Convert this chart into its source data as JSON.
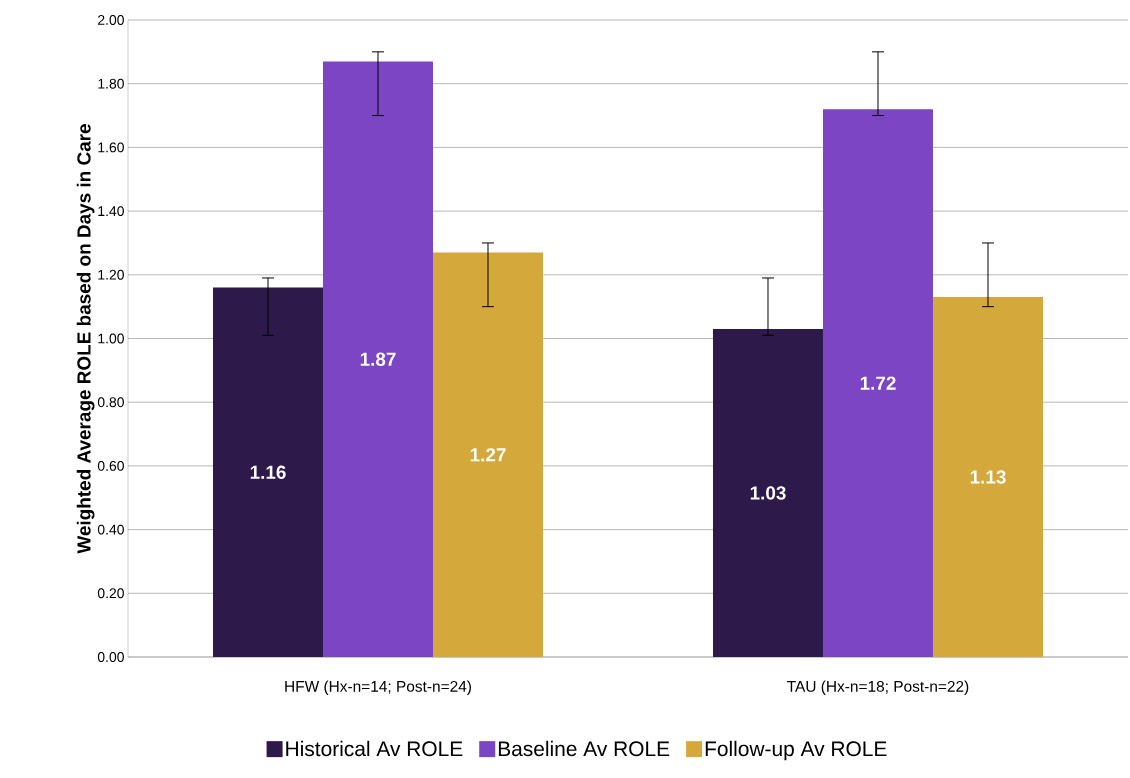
{
  "chart_data": {
    "type": "bar",
    "ylabel": "Weighted Average ROLE based on Days in Care",
    "categories": [
      "HFW (Hx-n=14; Post-n=24)",
      "TAU (Hx-n=18; Post-n=22)"
    ],
    "series": [
      {
        "name": "Historical Av ROLE",
        "color": "#2e1a4a",
        "values": [
          1.16,
          1.03
        ],
        "errors": [
          [
            1.01,
            1.19
          ],
          [
            1.01,
            1.19
          ]
        ]
      },
      {
        "name": "Baseline Av ROLE",
        "color": "#7b45c4",
        "values": [
          1.87,
          1.72
        ],
        "errors": [
          [
            1.7,
            1.9
          ],
          [
            1.7,
            1.9
          ]
        ]
      },
      {
        "name": "Follow-up Av ROLE",
        "color": "#d4a83a",
        "values": [
          1.27,
          1.13
        ],
        "errors": [
          [
            1.1,
            1.3
          ],
          [
            1.1,
            1.3
          ]
        ]
      }
    ],
    "ylim": [
      0,
      2
    ],
    "yticks": [
      {
        "value": 0,
        "label": "0.00"
      },
      {
        "value": 0.2,
        "label": "0.20"
      },
      {
        "value": 0.4,
        "label": "0.40"
      },
      {
        "value": 0.6,
        "label": "0.60"
      },
      {
        "value": 0.8,
        "label": "0.80"
      },
      {
        "value": 1.0,
        "label": "1.00"
      },
      {
        "value": 1.2,
        "label": "1.20"
      },
      {
        "value": 1.4,
        "label": "1.40"
      },
      {
        "value": 1.6,
        "label": "1.60"
      },
      {
        "value": 1.8,
        "label": "1.80"
      },
      {
        "value": 2.0,
        "label": "2.00"
      }
    ],
    "grid": "y",
    "legend": "bottom",
    "data_labels": true
  }
}
